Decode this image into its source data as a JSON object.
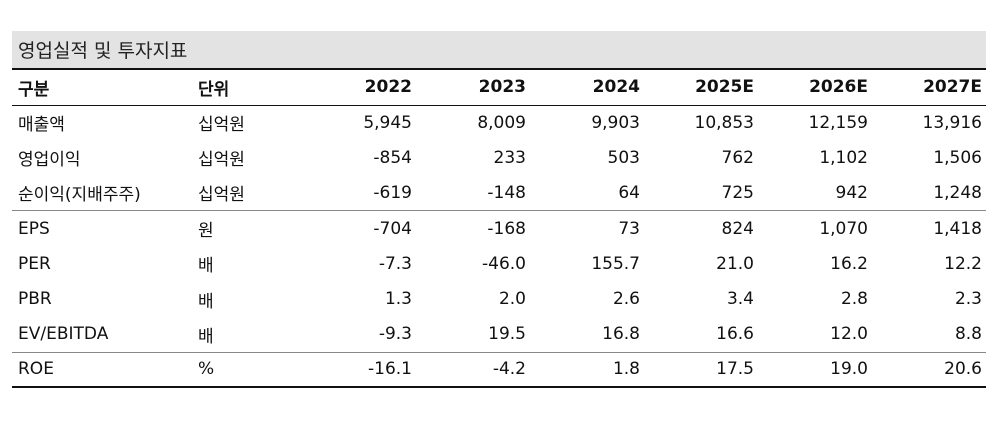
{
  "title": "영업실적 및 투자지표",
  "headers": [
    "구분",
    "단위",
    "2022",
    "2023",
    "2024",
    "2025E",
    "2026E",
    "2027E"
  ],
  "rows": [
    {
      "label": "매출액",
      "unit": "십억원",
      "values": [
        "5,945",
        "8,009",
        "9,903",
        "10,853",
        "12,159",
        "13,916"
      ]
    },
    {
      "label": "영업이익",
      "unit": "십억원",
      "values": [
        "-854",
        "233",
        "503",
        "762",
        "1,102",
        "1,506"
      ]
    },
    {
      "label": "순이익(지배주주)",
      "unit": "십억원",
      "values": [
        "-619",
        "-148",
        "64",
        "725",
        "942",
        "1,248"
      ]
    },
    {
      "label": "EPS",
      "unit": "원",
      "values": [
        "-704",
        "-168",
        "73",
        "824",
        "1,070",
        "1,418"
      ]
    },
    {
      "label": "PER",
      "unit": "배",
      "values": [
        "-7.3",
        "-46.0",
        "155.7",
        "21.0",
        "16.2",
        "12.2"
      ]
    },
    {
      "label": "PBR",
      "unit": "배",
      "values": [
        "1.3",
        "2.0",
        "2.6",
        "3.4",
        "2.8",
        "2.3"
      ]
    },
    {
      "label": "EV/EBITDA",
      "unit": "배",
      "values": [
        "-9.3",
        "19.5",
        "16.8",
        "16.6",
        "12.0",
        "8.8"
      ]
    },
    {
      "label": "ROE",
      "unit": "%",
      "values": [
        "-16.1",
        "-4.2",
        "1.8",
        "17.5",
        "19.0",
        "20.6"
      ]
    }
  ]
}
